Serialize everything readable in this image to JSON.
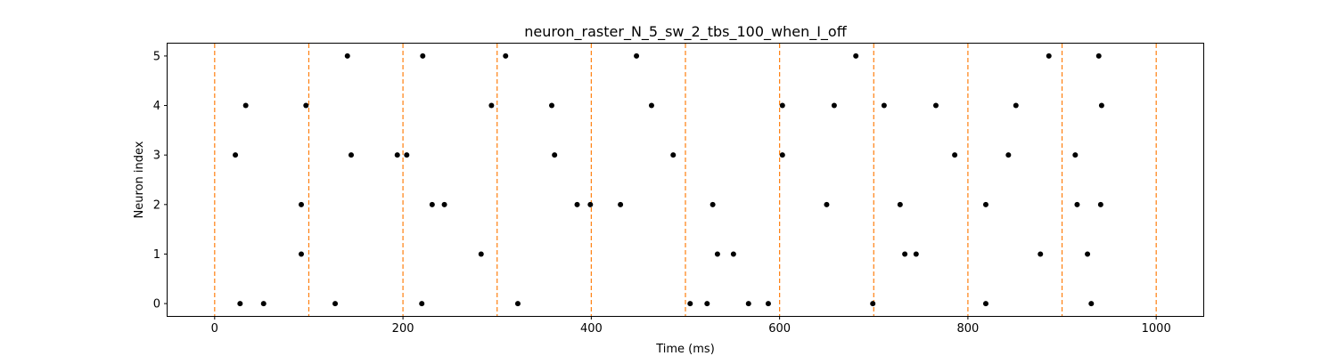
{
  "chart_data": {
    "type": "scatter",
    "title": "neuron_raster_N_5_sw_2_tbs_100_when_I_off",
    "xlabel": "Time (ms)",
    "ylabel": "Neuron index",
    "xlim": [
      -50,
      1050
    ],
    "ylim": [
      -0.25,
      5.25
    ],
    "xticks": [
      0,
      200,
      400,
      600,
      800,
      1000
    ],
    "yticks": [
      0,
      1,
      2,
      3,
      4,
      5
    ],
    "grid": false,
    "marker_color": "#000000",
    "vline_color": "#ff7f0e",
    "vlines": [
      0,
      100,
      200,
      300,
      400,
      500,
      600,
      700,
      800,
      900,
      1000
    ],
    "series": [
      {
        "values": [
          {
            "x": 27,
            "y": 0
          },
          {
            "x": 52,
            "y": 0
          },
          {
            "x": 128,
            "y": 0
          },
          {
            "x": 220,
            "y": 0
          },
          {
            "x": 322,
            "y": 0
          },
          {
            "x": 505,
            "y": 0
          },
          {
            "x": 523,
            "y": 0
          },
          {
            "x": 567,
            "y": 0
          },
          {
            "x": 588,
            "y": 0
          },
          {
            "x": 699,
            "y": 0
          },
          {
            "x": 819,
            "y": 0
          },
          {
            "x": 931,
            "y": 0
          },
          {
            "x": 92,
            "y": 1
          },
          {
            "x": 283,
            "y": 1
          },
          {
            "x": 534,
            "y": 1
          },
          {
            "x": 551,
            "y": 1
          },
          {
            "x": 733,
            "y": 1
          },
          {
            "x": 745,
            "y": 1
          },
          {
            "x": 877,
            "y": 1
          },
          {
            "x": 927,
            "y": 1
          },
          {
            "x": 92,
            "y": 2
          },
          {
            "x": 231,
            "y": 2
          },
          {
            "x": 244,
            "y": 2
          },
          {
            "x": 385,
            "y": 2
          },
          {
            "x": 399,
            "y": 2
          },
          {
            "x": 431,
            "y": 2
          },
          {
            "x": 529,
            "y": 2
          },
          {
            "x": 650,
            "y": 2
          },
          {
            "x": 728,
            "y": 2
          },
          {
            "x": 819,
            "y": 2
          },
          {
            "x": 916,
            "y": 2
          },
          {
            "x": 941,
            "y": 2
          },
          {
            "x": 22,
            "y": 3
          },
          {
            "x": 145,
            "y": 3
          },
          {
            "x": 194,
            "y": 3
          },
          {
            "x": 204,
            "y": 3
          },
          {
            "x": 361,
            "y": 3
          },
          {
            "x": 487,
            "y": 3
          },
          {
            "x": 603,
            "y": 3
          },
          {
            "x": 786,
            "y": 3
          },
          {
            "x": 843,
            "y": 3
          },
          {
            "x": 914,
            "y": 3
          },
          {
            "x": 33,
            "y": 4
          },
          {
            "x": 97,
            "y": 4
          },
          {
            "x": 294,
            "y": 4
          },
          {
            "x": 358,
            "y": 4
          },
          {
            "x": 464,
            "y": 4
          },
          {
            "x": 603,
            "y": 4
          },
          {
            "x": 658,
            "y": 4
          },
          {
            "x": 711,
            "y": 4
          },
          {
            "x": 766,
            "y": 4
          },
          {
            "x": 851,
            "y": 4
          },
          {
            "x": 942,
            "y": 4
          },
          {
            "x": 141,
            "y": 5
          },
          {
            "x": 221,
            "y": 5
          },
          {
            "x": 309,
            "y": 5
          },
          {
            "x": 448,
            "y": 5
          },
          {
            "x": 681,
            "y": 5
          },
          {
            "x": 886,
            "y": 5
          },
          {
            "x": 939,
            "y": 5
          }
        ]
      }
    ]
  }
}
